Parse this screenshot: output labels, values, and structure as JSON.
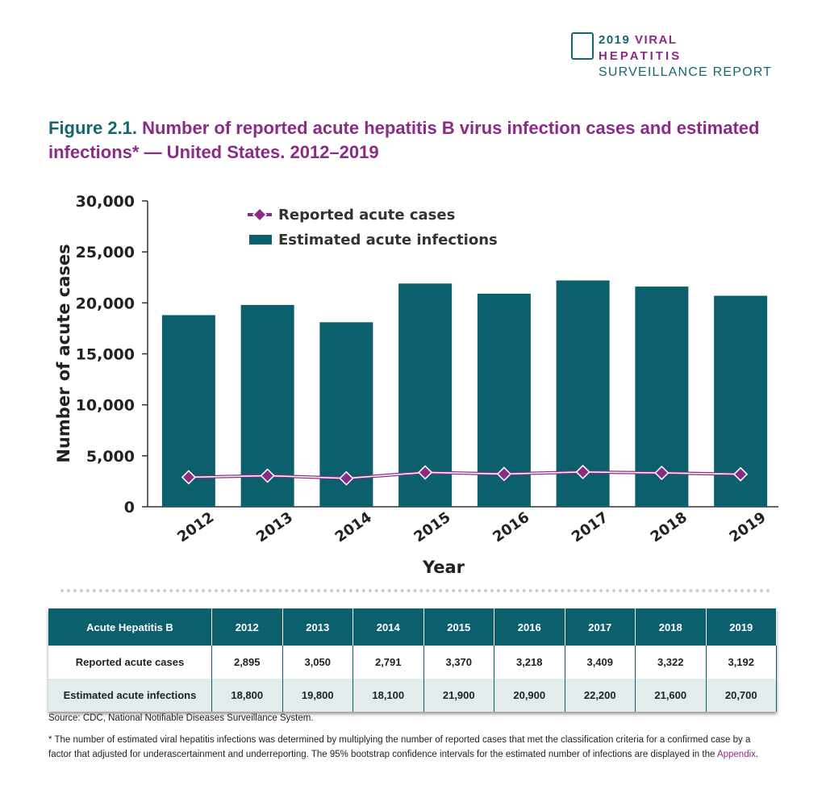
{
  "header": {
    "logo_line1_a": "2019",
    "logo_line1_b": "VIRAL",
    "logo_line2": "HEPATITIS",
    "logo_line3": "SURVEILLANCE REPORT",
    "logo_icon": "liver-chart-icon"
  },
  "figure": {
    "label": "Figure 2.1.",
    "title": "Number of reported acute hepatitis B virus infection cases and estimated infections* — United States. 2012–2019"
  },
  "chart_data": {
    "type": "bar+line",
    "categories": [
      "2012",
      "2013",
      "2014",
      "2015",
      "2016",
      "2017",
      "2018",
      "2019"
    ],
    "series": [
      {
        "name": "Reported acute cases",
        "type": "line",
        "color": "#8a2c86",
        "values": [
          2895,
          3050,
          2791,
          3370,
          3218,
          3409,
          3322,
          3192
        ]
      },
      {
        "name": "Estimated acute infections",
        "type": "bar",
        "color": "#0c5f6c",
        "values": [
          18800,
          19800,
          18100,
          21900,
          20900,
          22200,
          21600,
          20700
        ]
      }
    ],
    "xlabel": "Year",
    "ylabel": "Number of acute cases",
    "ylim": [
      0,
      30000
    ],
    "yticks": [
      "0",
      "5,000",
      "10,000",
      "15,000",
      "20,000",
      "25,000",
      "30,000"
    ],
    "legend": "top-left",
    "grid": false
  },
  "table": {
    "headers": [
      "Acute Hepatitis B",
      "2012",
      "2013",
      "2014",
      "2015",
      "2016",
      "2017",
      "2018",
      "2019"
    ],
    "rows": [
      [
        "Reported acute cases",
        "2,895",
        "3,050",
        "2,791",
        "3,370",
        "3,218",
        "3,409",
        "3,322",
        "3,192"
      ],
      [
        "Estimated acute infections",
        "18,800",
        "19,800",
        "18,100",
        "21,900",
        "20,900",
        "22,200",
        "21,600",
        "20,700"
      ]
    ]
  },
  "source": "Source: CDC, National Notifiable Diseases Surveillance System.",
  "footnote": "* The number of estimated viral hepatitis infections was determined by multiplying the number of reported cases that met the classification criteria for a confirmed case by a factor that adjusted for underascertainment and underreporting. The 95% bootstrap confidence intervals for the estimated number of infections are displayed in the",
  "footnote_link": "Appendix"
}
